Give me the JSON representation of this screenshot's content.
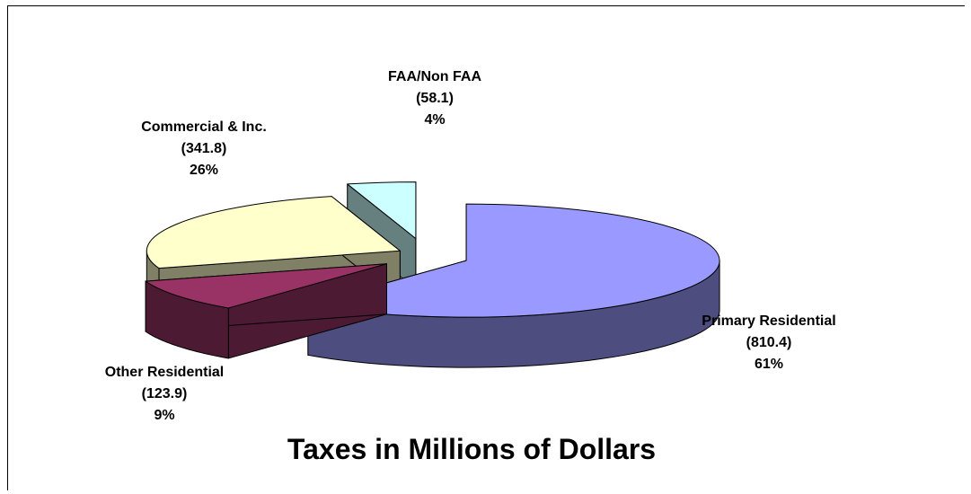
{
  "chart_data": {
    "type": "pie",
    "title": "Taxes in Millions of Dollars",
    "categories": [
      "Primary Residential",
      "Other Residential",
      "Commercial & Inc.",
      "FAA/Non FAA"
    ],
    "values": [
      810.4,
      123.9,
      341.8,
      58.1
    ],
    "value_labels": [
      "(810.4)",
      "(123.9)",
      "(341.8)",
      "(58.1)"
    ],
    "percents": [
      "61%",
      "9%",
      "26%",
      "4%"
    ],
    "colors": [
      "#9999FF",
      "#993366",
      "#FFFFCC",
      "#CCFFFF"
    ],
    "exploded": true,
    "three_d": true,
    "legend": "none"
  }
}
